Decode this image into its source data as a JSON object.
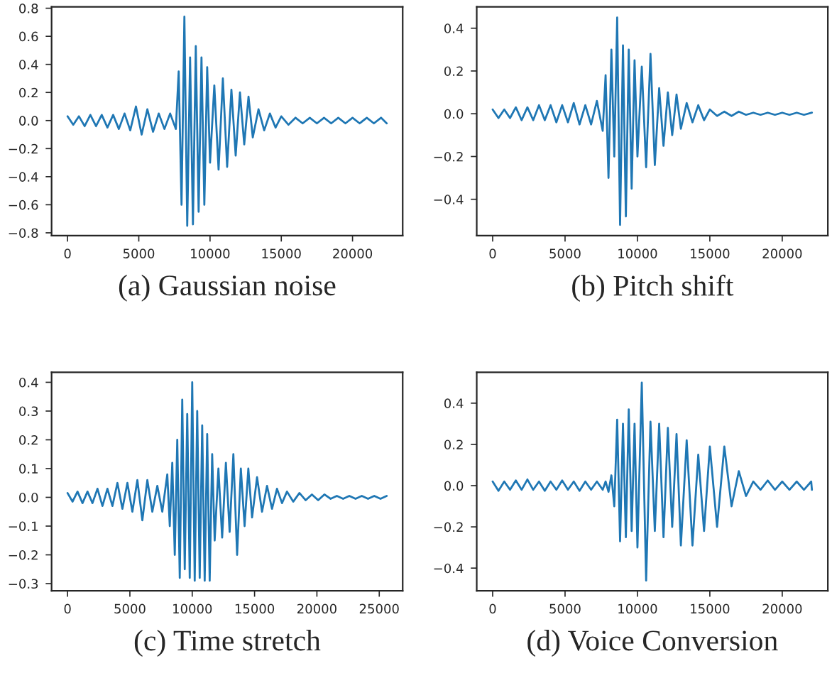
{
  "chart_data": [
    {
      "type": "line",
      "xlabel": "(a) Gaussian noise",
      "xlim": [
        -1120,
        23520
      ],
      "ylim": [
        -0.82,
        0.81
      ],
      "xticks": [
        0,
        5000,
        10000,
        15000,
        20000
      ],
      "yticks": [
        {
          "value": -0.8,
          "label": "−0.8"
        },
        {
          "value": -0.6,
          "label": "−0.6"
        },
        {
          "value": -0.4,
          "label": "−0.4"
        },
        {
          "value": -0.2,
          "label": "−0.2"
        },
        {
          "value": 0,
          "label": "0.0"
        },
        0.2,
        0.4,
        0.6,
        0.8
      ],
      "grid": false,
      "legend": false,
      "series": [
        {
          "color": "#1f77b4",
          "x": [
            0,
            400,
            800,
            1200,
            1600,
            2000,
            2400,
            2800,
            3200,
            3600,
            4000,
            4400,
            4800,
            5200,
            5600,
            6000,
            6400,
            6800,
            7200,
            7600,
            7800,
            8000,
            8200,
            8400,
            8600,
            8800,
            9000,
            9200,
            9400,
            9600,
            9800,
            10000,
            10300,
            10600,
            10900,
            11200,
            11500,
            11800,
            12100,
            12400,
            12700,
            13000,
            13400,
            13800,
            14200,
            14600,
            15000,
            15500,
            16000,
            16500,
            17000,
            17500,
            18000,
            18500,
            19000,
            19500,
            20000,
            20500,
            21000,
            21500,
            22000,
            22400
          ],
          "values": [
            0.03,
            -0.03,
            0.03,
            -0.04,
            0.04,
            -0.04,
            0.04,
            -0.05,
            0.04,
            -0.06,
            0.05,
            -0.07,
            0.1,
            -0.1,
            0.08,
            -0.08,
            0.05,
            -0.06,
            0.05,
            -0.06,
            0.35,
            -0.6,
            0.74,
            -0.75,
            0.45,
            -0.74,
            0.53,
            -0.65,
            0.45,
            -0.6,
            0.38,
            -0.3,
            0.25,
            -0.35,
            0.3,
            -0.33,
            0.22,
            -0.25,
            0.2,
            -0.17,
            0.17,
            -0.12,
            0.08,
            -0.07,
            0.05,
            -0.05,
            0.03,
            -0.03,
            0.02,
            -0.02,
            0.02,
            -0.02,
            0.02,
            -0.02,
            0.02,
            -0.02,
            0.02,
            -0.02,
            0.02,
            -0.02,
            0.02,
            -0.02
          ]
        }
      ]
    },
    {
      "type": "line",
      "xlabel": "(b) Pitch shift",
      "xlim": [
        -1100,
        23150
      ],
      "ylim": [
        -0.57,
        0.5
      ],
      "xticks": [
        0,
        5000,
        10000,
        15000,
        20000
      ],
      "yticks": [
        {
          "value": -0.4,
          "label": "−0.4"
        },
        {
          "value": -0.2,
          "label": "−0.2"
        },
        {
          "value": 0,
          "label": "0.0"
        },
        0.2,
        0.4
      ],
      "grid": false,
      "legend": false,
      "series": [
        {
          "color": "#1f77b4",
          "x": [
            0,
            400,
            800,
            1200,
            1600,
            2000,
            2400,
            2800,
            3200,
            3600,
            4000,
            4400,
            4800,
            5200,
            5600,
            6000,
            6400,
            6800,
            7200,
            7600,
            7800,
            8000,
            8200,
            8400,
            8600,
            8800,
            9000,
            9200,
            9400,
            9600,
            9800,
            10000,
            10300,
            10600,
            10900,
            11200,
            11500,
            11800,
            12100,
            12400,
            12700,
            13000,
            13400,
            13800,
            14200,
            14600,
            15000,
            15500,
            16000,
            16500,
            17000,
            17500,
            18000,
            18500,
            19000,
            19500,
            20000,
            20500,
            21000,
            21500,
            22050
          ],
          "values": [
            0.02,
            -0.02,
            0.02,
            -0.02,
            0.03,
            -0.03,
            0.03,
            -0.03,
            0.04,
            -0.03,
            0.04,
            -0.04,
            0.04,
            -0.04,
            0.05,
            -0.05,
            0.04,
            -0.05,
            0.06,
            -0.08,
            0.18,
            -0.3,
            0.3,
            -0.2,
            0.45,
            -0.52,
            0.32,
            -0.48,
            0.3,
            -0.35,
            0.25,
            -0.2,
            0.22,
            -0.25,
            0.28,
            -0.24,
            0.12,
            -0.15,
            0.1,
            -0.1,
            0.09,
            -0.07,
            0.05,
            -0.04,
            0.04,
            -0.03,
            0.02,
            -0.01,
            0.01,
            -0.01,
            0.01,
            -0.005,
            0.005,
            -0.005,
            0.005,
            -0.005,
            0.005,
            -0.005,
            0.005,
            -0.005,
            0.005
          ]
        }
      ]
    },
    {
      "type": "line",
      "xlabel": "(c) Time stretch",
      "xlim": [
        -1280,
        26880
      ],
      "ylim": [
        -0.325,
        0.435
      ],
      "xticks": [
        0,
        5000,
        10000,
        15000,
        20000,
        25000
      ],
      "yticks": [
        {
          "value": -0.3,
          "label": "−0.3"
        },
        {
          "value": -0.2,
          "label": "−0.2"
        },
        {
          "value": -0.1,
          "label": "−0.1"
        },
        {
          "value": 0,
          "label": "0.0"
        },
        0.1,
        0.2,
        0.3,
        0.4
      ],
      "grid": false,
      "legend": false,
      "series": [
        {
          "color": "#1f77b4",
          "x": [
            0,
            400,
            800,
            1200,
            1600,
            2000,
            2400,
            2800,
            3200,
            3600,
            4000,
            4400,
            4800,
            5200,
            5600,
            6000,
            6400,
            6800,
            7200,
            7600,
            8000,
            8200,
            8400,
            8600,
            8800,
            9000,
            9200,
            9400,
            9600,
            9800,
            10000,
            10200,
            10400,
            10600,
            10800,
            11000,
            11200,
            11400,
            11600,
            11800,
            12100,
            12400,
            12700,
            13000,
            13300,
            13600,
            13900,
            14200,
            14500,
            14800,
            15200,
            15600,
            16000,
            16400,
            16800,
            17200,
            17600,
            18100,
            18600,
            19100,
            19600,
            20100,
            20600,
            21100,
            21600,
            22100,
            22600,
            23100,
            23600,
            24100,
            24600,
            25100,
            25600
          ],
          "values": [
            0.015,
            -0.015,
            0.02,
            -0.02,
            0.02,
            -0.02,
            0.03,
            -0.03,
            0.03,
            -0.03,
            0.05,
            -0.04,
            0.05,
            -0.05,
            0.06,
            -0.08,
            0.06,
            -0.05,
            0.04,
            -0.05,
            0.08,
            -0.1,
            0.12,
            -0.2,
            0.2,
            -0.28,
            0.34,
            -0.25,
            0.29,
            -0.28,
            0.4,
            -0.29,
            0.3,
            -0.28,
            0.25,
            -0.29,
            0.22,
            -0.29,
            0.15,
            -0.15,
            0.1,
            -0.14,
            0.12,
            -0.12,
            0.15,
            -0.2,
            0.1,
            -0.1,
            0.1,
            -0.07,
            0.07,
            -0.05,
            0.04,
            -0.04,
            0.03,
            -0.02,
            0.02,
            -0.015,
            0.015,
            -0.01,
            0.01,
            -0.01,
            0.01,
            -0.005,
            0.005,
            -0.005,
            0.005,
            -0.005,
            0.005,
            -0.005,
            0.005,
            -0.005,
            0.005
          ]
        }
      ]
    },
    {
      "type": "line",
      "xlabel": "(d) Voice Conversion",
      "xlim": [
        -1100,
        23150
      ],
      "ylim": [
        -0.51,
        0.55
      ],
      "xticks": [
        0,
        5000,
        10000,
        15000,
        20000
      ],
      "yticks": [
        {
          "value": -0.4,
          "label": "−0.4"
        },
        {
          "value": -0.2,
          "label": "−0.2"
        },
        {
          "value": 0,
          "label": "0.0"
        },
        0.2,
        0.4
      ],
      "grid": false,
      "legend": false,
      "series": [
        {
          "color": "#1f77b4",
          "x": [
            0,
            400,
            800,
            1200,
            1600,
            2000,
            2400,
            2800,
            3200,
            3600,
            4000,
            4400,
            4800,
            5200,
            5600,
            6000,
            6400,
            6800,
            7200,
            7600,
            7800,
            8000,
            8200,
            8400,
            8600,
            8800,
            9000,
            9200,
            9400,
            9600,
            9800,
            10000,
            10300,
            10600,
            10900,
            11200,
            11500,
            11800,
            12100,
            12400,
            12700,
            13000,
            13400,
            13800,
            14200,
            14600,
            15000,
            15500,
            16000,
            16500,
            17000,
            17500,
            18000,
            18500,
            19000,
            19500,
            20000,
            20500,
            21000,
            21500,
            22000,
            22050
          ],
          "values": [
            0.02,
            -0.025,
            0.02,
            -0.02,
            0.025,
            -0.02,
            0.03,
            -0.02,
            0.02,
            -0.025,
            0.02,
            -0.02,
            0.025,
            -0.02,
            0.02,
            -0.025,
            0.02,
            -0.02,
            0.02,
            -0.02,
            0.02,
            -0.03,
            0.05,
            -0.1,
            0.32,
            -0.27,
            0.3,
            -0.25,
            0.37,
            -0.22,
            0.3,
            -0.3,
            0.5,
            -0.46,
            0.31,
            -0.22,
            0.3,
            -0.25,
            0.28,
            -0.2,
            0.25,
            -0.29,
            0.22,
            -0.29,
            0.15,
            -0.22,
            0.19,
            -0.2,
            0.19,
            -0.1,
            0.07,
            -0.05,
            0.02,
            -0.02,
            0.025,
            -0.02,
            0.02,
            -0.02,
            0.02,
            -0.02,
            0.02,
            -0.02
          ]
        }
      ]
    }
  ]
}
